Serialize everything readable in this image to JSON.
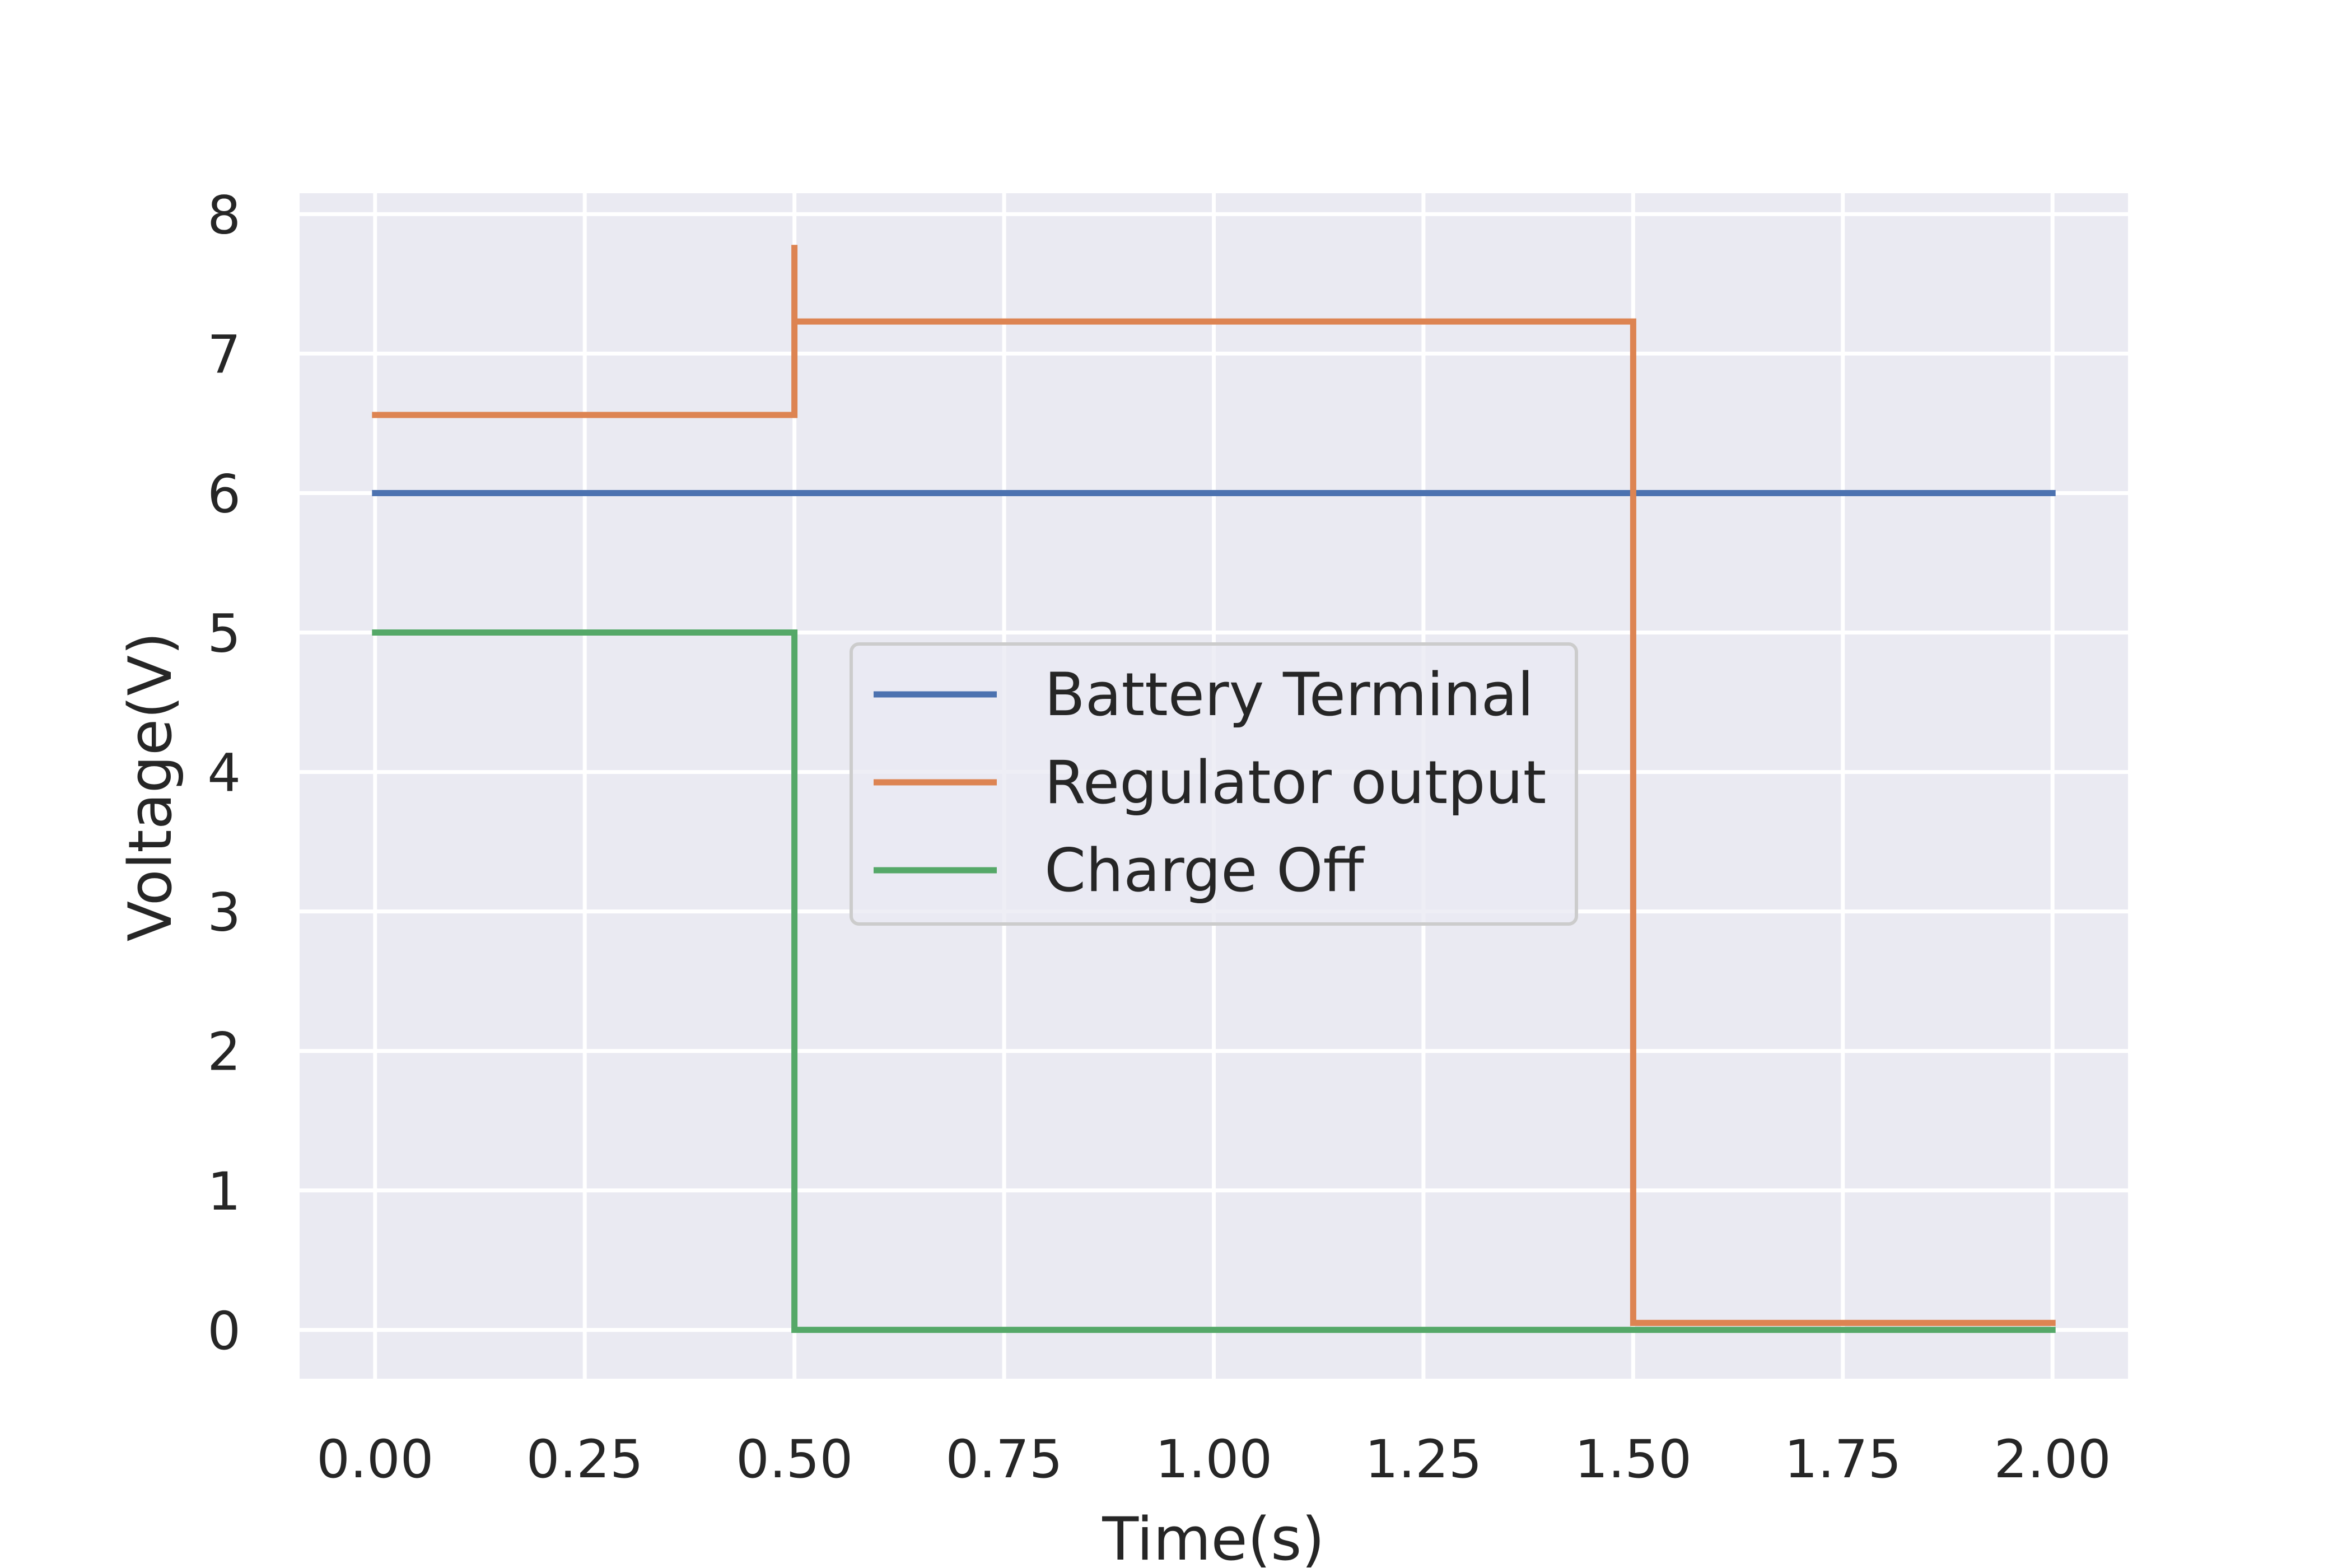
{
  "chart_data": {
    "type": "line",
    "xlabel": "Time(s)",
    "ylabel": "Voltage(V)",
    "xlim": [
      -0.09,
      2.09
    ],
    "ylim": [
      -0.35,
      8.15
    ],
    "xticks": [
      "0.00",
      "0.25",
      "0.50",
      "0.75",
      "1.00",
      "1.25",
      "1.50",
      "1.75",
      "2.00"
    ],
    "yticks": [
      "0",
      "1",
      "2",
      "3",
      "4",
      "5",
      "6",
      "7",
      "8"
    ],
    "grid": true,
    "legend_position": "center",
    "series": [
      {
        "name": "Battery Terminal",
        "color": "#4c72b0",
        "x": [
          0,
          2
        ],
        "y": [
          6,
          6
        ]
      },
      {
        "name": "Regulator output",
        "color": "#dd8452",
        "x": [
          0,
          0.5,
          0.5,
          0.5,
          1.5,
          1.5,
          2
        ],
        "y": [
          6.56,
          6.56,
          7.78,
          7.23,
          7.23,
          0.05,
          0.05
        ]
      },
      {
        "name": "Charge Off",
        "color": "#55a868",
        "x": [
          0,
          0.5,
          0.5,
          2
        ],
        "y": [
          5,
          5,
          0,
          0
        ]
      }
    ]
  }
}
